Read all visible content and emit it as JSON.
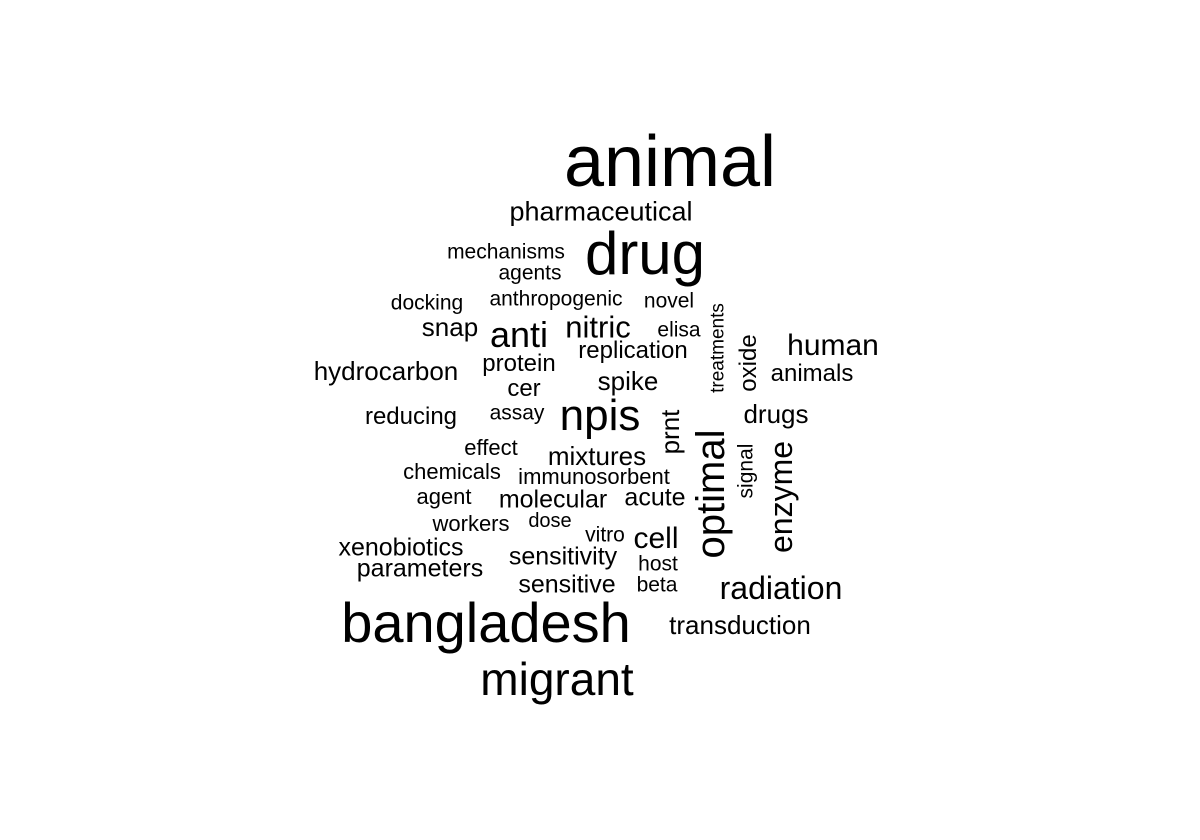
{
  "word_cloud": {
    "text_color": "#000000",
    "background": "#ffffff",
    "words": [
      {
        "text": "animal",
        "weight": 10,
        "orientation": "horizontal"
      },
      {
        "text": "pharmaceutical",
        "weight": 3,
        "orientation": "horizontal"
      },
      {
        "text": "drug",
        "weight": 8,
        "orientation": "horizontal"
      },
      {
        "text": "mechanisms",
        "weight": 2,
        "orientation": "horizontal"
      },
      {
        "text": "agents",
        "weight": 2,
        "orientation": "horizontal"
      },
      {
        "text": "docking",
        "weight": 2,
        "orientation": "horizontal"
      },
      {
        "text": "anthropogenic",
        "weight": 2,
        "orientation": "horizontal"
      },
      {
        "text": "novel",
        "weight": 2,
        "orientation": "horizontal"
      },
      {
        "text": "treatments",
        "weight": 1,
        "orientation": "vertical"
      },
      {
        "text": "snap",
        "weight": 3,
        "orientation": "horizontal"
      },
      {
        "text": "anti",
        "weight": 5,
        "orientation": "horizontal"
      },
      {
        "text": "nitric",
        "weight": 4,
        "orientation": "horizontal"
      },
      {
        "text": "elisa",
        "weight": 2,
        "orientation": "horizontal"
      },
      {
        "text": "oxide",
        "weight": 3,
        "orientation": "vertical"
      },
      {
        "text": "human",
        "weight": 4,
        "orientation": "horizontal"
      },
      {
        "text": "replication",
        "weight": 3,
        "orientation": "horizontal"
      },
      {
        "text": "protein",
        "weight": 3,
        "orientation": "horizontal"
      },
      {
        "text": "hydrocarbon",
        "weight": 3,
        "orientation": "horizontal"
      },
      {
        "text": "animals",
        "weight": 3,
        "orientation": "horizontal"
      },
      {
        "text": "cer",
        "weight": 3,
        "orientation": "horizontal"
      },
      {
        "text": "spike",
        "weight": 3,
        "orientation": "horizontal"
      },
      {
        "text": "reducing",
        "weight": 3,
        "orientation": "horizontal"
      },
      {
        "text": "assay",
        "weight": 2,
        "orientation": "horizontal"
      },
      {
        "text": "npis",
        "weight": 7,
        "orientation": "horizontal"
      },
      {
        "text": "prnt",
        "weight": 3,
        "orientation": "vertical"
      },
      {
        "text": "drugs",
        "weight": 3,
        "orientation": "horizontal"
      },
      {
        "text": "optimal",
        "weight": 6,
        "orientation": "vertical"
      },
      {
        "text": "effect",
        "weight": 2,
        "orientation": "horizontal"
      },
      {
        "text": "mixtures",
        "weight": 3,
        "orientation": "horizontal"
      },
      {
        "text": "signal",
        "weight": 2,
        "orientation": "vertical"
      },
      {
        "text": "enzyme",
        "weight": 4,
        "orientation": "vertical"
      },
      {
        "text": "chemicals",
        "weight": 2,
        "orientation": "horizontal"
      },
      {
        "text": "immunosorbent",
        "weight": 2,
        "orientation": "horizontal"
      },
      {
        "text": "agent",
        "weight": 2,
        "orientation": "horizontal"
      },
      {
        "text": "molecular",
        "weight": 3,
        "orientation": "horizontal"
      },
      {
        "text": "acute",
        "weight": 3,
        "orientation": "horizontal"
      },
      {
        "text": "workers",
        "weight": 2,
        "orientation": "horizontal"
      },
      {
        "text": "dose",
        "weight": 2,
        "orientation": "horizontal"
      },
      {
        "text": "vitro",
        "weight": 2,
        "orientation": "horizontal"
      },
      {
        "text": "cell",
        "weight": 4,
        "orientation": "horizontal"
      },
      {
        "text": "xenobiotics",
        "weight": 3,
        "orientation": "horizontal"
      },
      {
        "text": "sensitivity",
        "weight": 3,
        "orientation": "horizontal"
      },
      {
        "text": "host",
        "weight": 2,
        "orientation": "horizontal"
      },
      {
        "text": "parameters",
        "weight": 3,
        "orientation": "horizontal"
      },
      {
        "text": "sensitive",
        "weight": 3,
        "orientation": "horizontal"
      },
      {
        "text": "beta",
        "weight": 2,
        "orientation": "horizontal"
      },
      {
        "text": "radiation",
        "weight": 4,
        "orientation": "horizontal"
      },
      {
        "text": "bangladesh",
        "weight": 9,
        "orientation": "horizontal"
      },
      {
        "text": "transduction",
        "weight": 3,
        "orientation": "horizontal"
      },
      {
        "text": "migrant",
        "weight": 6,
        "orientation": "horizontal"
      }
    ]
  }
}
